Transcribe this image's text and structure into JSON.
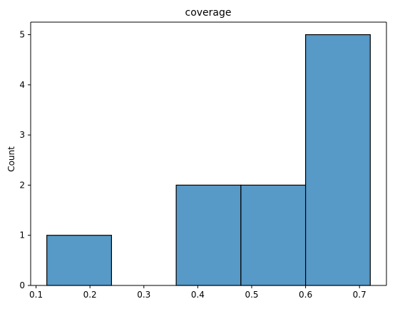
{
  "chart_data": {
    "type": "bar",
    "title": "coverage",
    "xlabel": "",
    "ylabel": "Count",
    "bins": [
      {
        "start": 0.12,
        "end": 0.24,
        "count": 1
      },
      {
        "start": 0.24,
        "end": 0.36,
        "count": 0
      },
      {
        "start": 0.36,
        "end": 0.48,
        "count": 2
      },
      {
        "start": 0.48,
        "end": 0.6,
        "count": 2
      },
      {
        "start": 0.6,
        "end": 0.72,
        "count": 5
      }
    ],
    "xlim": [
      0.09,
      0.75
    ],
    "ylim": [
      0,
      5.25
    ],
    "xticks": [
      0.1,
      0.2,
      0.3,
      0.4,
      0.5,
      0.6,
      0.7
    ],
    "xtick_labels": [
      "0.1",
      "0.2",
      "0.3",
      "0.4",
      "0.5",
      "0.6",
      "0.7"
    ],
    "yticks": [
      0,
      1,
      2,
      3,
      4,
      5
    ],
    "ytick_labels": [
      "0",
      "1",
      "2",
      "3",
      "4",
      "5"
    ],
    "bar_color": "#5799c7",
    "edge_color": "#000000",
    "grid": false,
    "legend": "none"
  }
}
